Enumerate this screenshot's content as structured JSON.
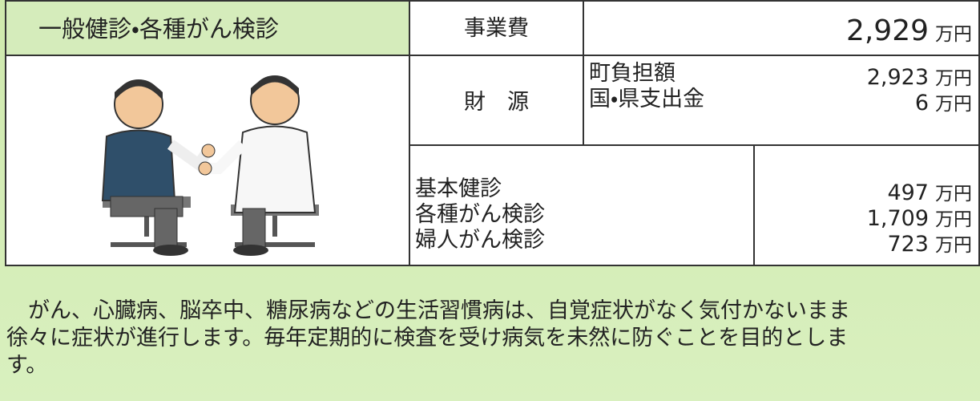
{
  "header": {
    "title": "一般健診・各種がん検診",
    "cost_label": "事業費",
    "cost_amount": "2,929",
    "cost_unit": "万円"
  },
  "funding": {
    "label": "財　源",
    "rows": [
      {
        "name": "町負担額",
        "amount": "2,923",
        "unit": "万円"
      },
      {
        "name": "国・県支出金",
        "amount": "6",
        "unit": "万円"
      }
    ]
  },
  "breakdown": [
    {
      "name": "基本健診",
      "amount": "497",
      "unit": "万円"
    },
    {
      "name": "各種がん検診",
      "amount": "1,709",
      "unit": "万円"
    },
    {
      "name": "婦人がん検診",
      "amount": "723",
      "unit": "万円"
    }
  ],
  "description": [
    "　がん、心臓病、脳卒中、糖尿病などの生活習慣病は、自覚症状がなく気付かないまま",
    "徐々に症状が進行します。毎年定期的に検査を受け病気を未然に防ぐことを目的としま",
    "す。"
  ]
}
